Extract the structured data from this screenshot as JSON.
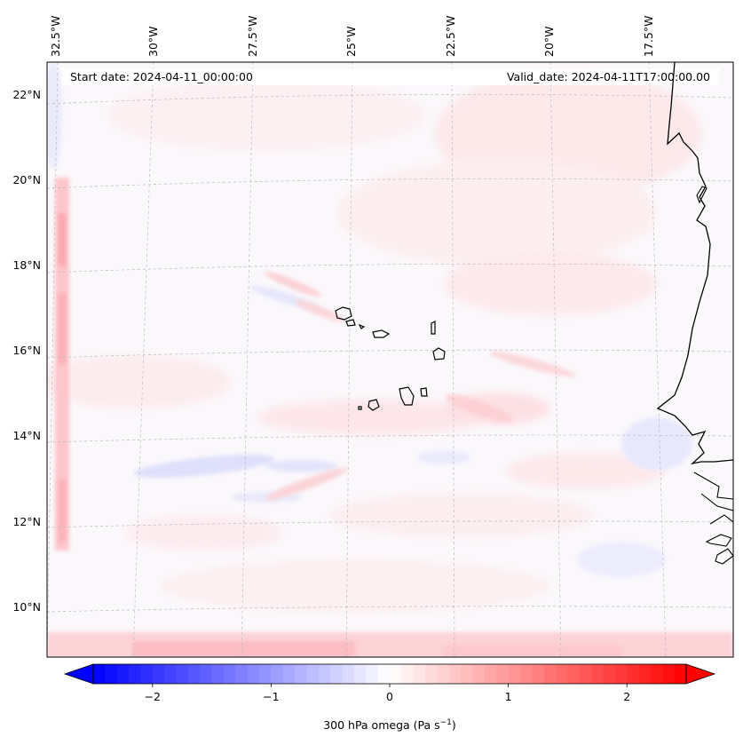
{
  "header": {
    "start_date": "Start date: 2024-04-11_00:00:00",
    "valid_date": "Valid_date: 2024-04-11T17:00:00.00"
  },
  "map": {
    "lon_labels": [
      "32.5°W",
      "30°W",
      "27.5°W",
      "25°W",
      "22.5°W",
      "20°W",
      "17.5°W"
    ],
    "lat_labels": [
      "22°N",
      "20°N",
      "18°N",
      "16°N",
      "14°N",
      "12°N",
      "10°N"
    ],
    "field": "300 hPa omega",
    "coastline_color": "#000000",
    "gridline_color": "#bbbbbb"
  },
  "colorbar": {
    "label_text": "300 hPa omega (Pa s",
    "label_exp": "−1",
    "label_close": ")",
    "ticks": [
      "−2",
      "−1",
      "0",
      "1",
      "2"
    ],
    "tick_values": [
      -2,
      -1,
      0,
      1,
      2
    ],
    "vmin": -2.5,
    "vmax": 2.5,
    "cmap": "bwr",
    "color_min": "#0000ff",
    "color_mid": "#ffffff",
    "color_max": "#ff0000"
  }
}
